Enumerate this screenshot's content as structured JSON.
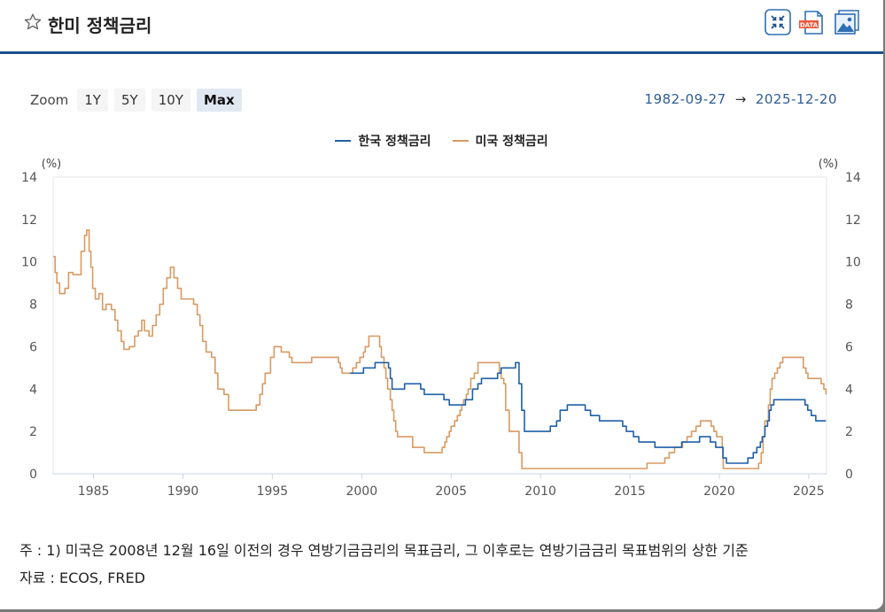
{
  "header": {
    "title": "한미 정책금리",
    "colors": {
      "accent": "#1d4f8c",
      "icon": "#2e6eb5",
      "data_badge": "#e8573c"
    }
  },
  "zoom": {
    "label": "Zoom",
    "buttons": [
      "1Y",
      "5Y",
      "10Y",
      "Max"
    ],
    "active": "Max"
  },
  "range": {
    "from": "1982-09-27",
    "arrow": "→",
    "to": "2025-12-20"
  },
  "notes": {
    "note1": "주 : 1) 미국은 2008년 12월 16일 이전의 경우 연방기금금리의 목표금리, 그 이후로는 연방기금금리 목표범위의 상한 기준",
    "source": "자료 : ECOS, FRED"
  },
  "chart_data": {
    "type": "line",
    "unit_left": "(%)",
    "unit_right": "(%)",
    "xlim": [
      1982.74,
      2026.0
    ],
    "ylim": [
      0,
      14
    ],
    "y_ticks": [
      0,
      2,
      4,
      6,
      8,
      10,
      12,
      14
    ],
    "x_ticks": [
      1985,
      1990,
      1995,
      2000,
      2005,
      2010,
      2015,
      2020,
      2025
    ],
    "legend_position": "top-center",
    "series": [
      {
        "name": "한국 정책금리",
        "color": "#1f5fa8",
        "points": [
          [
            1999.35,
            4.75
          ],
          [
            1999.85,
            4.75
          ],
          [
            2000.1,
            5.0
          ],
          [
            2000.75,
            5.25
          ],
          [
            2001.5,
            5.0
          ],
          [
            2001.6,
            4.5
          ],
          [
            2001.7,
            4.0
          ],
          [
            2002.4,
            4.25
          ],
          [
            2003.3,
            4.0
          ],
          [
            2003.5,
            3.75
          ],
          [
            2004.6,
            3.5
          ],
          [
            2004.9,
            3.25
          ],
          [
            2005.8,
            3.5
          ],
          [
            2006.2,
            4.0
          ],
          [
            2006.5,
            4.25
          ],
          [
            2006.7,
            4.5
          ],
          [
            2007.6,
            4.75
          ],
          [
            2007.8,
            5.0
          ],
          [
            2008.6,
            5.25
          ],
          [
            2008.8,
            4.25
          ],
          [
            2008.95,
            3.0
          ],
          [
            2009.1,
            2.0
          ],
          [
            2010.55,
            2.25
          ],
          [
            2010.9,
            2.5
          ],
          [
            2011.1,
            3.0
          ],
          [
            2011.5,
            3.25
          ],
          [
            2012.5,
            3.0
          ],
          [
            2012.8,
            2.75
          ],
          [
            2013.3,
            2.5
          ],
          [
            2014.6,
            2.25
          ],
          [
            2014.8,
            2.0
          ],
          [
            2015.2,
            1.75
          ],
          [
            2015.5,
            1.5
          ],
          [
            2016.4,
            1.25
          ],
          [
            2017.9,
            1.5
          ],
          [
            2018.9,
            1.75
          ],
          [
            2019.5,
            1.5
          ],
          [
            2019.8,
            1.25
          ],
          [
            2020.2,
            0.75
          ],
          [
            2020.4,
            0.5
          ],
          [
            2021.6,
            0.75
          ],
          [
            2021.9,
            1.0
          ],
          [
            2022.1,
            1.25
          ],
          [
            2022.3,
            1.5
          ],
          [
            2022.4,
            1.75
          ],
          [
            2022.55,
            2.25
          ],
          [
            2022.7,
            2.5
          ],
          [
            2022.8,
            3.0
          ],
          [
            2022.9,
            3.25
          ],
          [
            2023.05,
            3.5
          ],
          [
            2024.8,
            3.25
          ],
          [
            2024.95,
            3.0
          ],
          [
            2025.15,
            2.75
          ],
          [
            2025.4,
            2.5
          ],
          [
            2025.97,
            2.5
          ]
        ]
      },
      {
        "name": "미국 정책금리",
        "color": "#d89a62",
        "points": [
          [
            1982.74,
            10.25
          ],
          [
            1982.85,
            9.5
          ],
          [
            1982.95,
            9.0
          ],
          [
            1983.1,
            8.5
          ],
          [
            1983.4,
            8.75
          ],
          [
            1983.6,
            9.5
          ],
          [
            1983.85,
            9.4
          ],
          [
            1984.2,
            9.4
          ],
          [
            1984.3,
            10.5
          ],
          [
            1984.5,
            11.25
          ],
          [
            1984.62,
            11.5
          ],
          [
            1984.75,
            10.5
          ],
          [
            1984.85,
            9.75
          ],
          [
            1984.95,
            8.75
          ],
          [
            1985.1,
            8.25
          ],
          [
            1985.3,
            8.5
          ],
          [
            1985.5,
            7.75
          ],
          [
            1985.7,
            8.0
          ],
          [
            1986.0,
            7.75
          ],
          [
            1986.2,
            7.25
          ],
          [
            1986.35,
            6.75
          ],
          [
            1986.55,
            6.25
          ],
          [
            1986.7,
            5.875
          ],
          [
            1987.0,
            6.0
          ],
          [
            1987.3,
            6.5
          ],
          [
            1987.5,
            6.75
          ],
          [
            1987.7,
            7.25
          ],
          [
            1987.85,
            6.75
          ],
          [
            1988.1,
            6.5
          ],
          [
            1988.3,
            7.0
          ],
          [
            1988.5,
            7.5
          ],
          [
            1988.7,
            8.0
          ],
          [
            1988.9,
            8.75
          ],
          [
            1989.1,
            9.25
          ],
          [
            1989.3,
            9.75
          ],
          [
            1989.5,
            9.25
          ],
          [
            1989.7,
            8.75
          ],
          [
            1989.9,
            8.25
          ],
          [
            1990.6,
            8.0
          ],
          [
            1990.8,
            7.5
          ],
          [
            1990.95,
            7.0
          ],
          [
            1991.1,
            6.25
          ],
          [
            1991.3,
            5.75
          ],
          [
            1991.6,
            5.5
          ],
          [
            1991.8,
            4.75
          ],
          [
            1991.95,
            4.0
          ],
          [
            1992.3,
            3.75
          ],
          [
            1992.55,
            3.0
          ],
          [
            1994.1,
            3.25
          ],
          [
            1994.3,
            3.75
          ],
          [
            1994.45,
            4.25
          ],
          [
            1994.6,
            4.75
          ],
          [
            1994.9,
            5.5
          ],
          [
            1995.1,
            6.0
          ],
          [
            1995.5,
            5.75
          ],
          [
            1995.95,
            5.5
          ],
          [
            1996.1,
            5.25
          ],
          [
            1997.2,
            5.5
          ],
          [
            1998.7,
            5.25
          ],
          [
            1998.8,
            5.0
          ],
          [
            1998.9,
            4.75
          ],
          [
            1999.5,
            5.0
          ],
          [
            1999.7,
            5.25
          ],
          [
            1999.9,
            5.5
          ],
          [
            2000.1,
            5.75
          ],
          [
            2000.2,
            6.0
          ],
          [
            2000.4,
            6.5
          ],
          [
            2001.0,
            6.0
          ],
          [
            2001.1,
            5.5
          ],
          [
            2001.25,
            5.0
          ],
          [
            2001.35,
            4.5
          ],
          [
            2001.45,
            4.0
          ],
          [
            2001.6,
            3.5
          ],
          [
            2001.7,
            3.0
          ],
          [
            2001.8,
            2.5
          ],
          [
            2001.9,
            2.0
          ],
          [
            2002.0,
            1.75
          ],
          [
            2002.85,
            1.25
          ],
          [
            2003.5,
            1.0
          ],
          [
            2004.5,
            1.25
          ],
          [
            2004.65,
            1.5
          ],
          [
            2004.75,
            1.75
          ],
          [
            2004.9,
            2.0
          ],
          [
            2005.0,
            2.25
          ],
          [
            2005.2,
            2.5
          ],
          [
            2005.35,
            2.75
          ],
          [
            2005.5,
            3.0
          ],
          [
            2005.6,
            3.25
          ],
          [
            2005.7,
            3.5
          ],
          [
            2005.85,
            3.75
          ],
          [
            2005.95,
            4.0
          ],
          [
            2006.1,
            4.5
          ],
          [
            2006.3,
            4.75
          ],
          [
            2006.5,
            5.25
          ],
          [
            2007.7,
            4.75
          ],
          [
            2007.8,
            4.5
          ],
          [
            2007.95,
            4.25
          ],
          [
            2008.05,
            3.0
          ],
          [
            2008.25,
            2.0
          ],
          [
            2008.8,
            1.0
          ],
          [
            2008.96,
            0.25
          ],
          [
            2015.96,
            0.5
          ],
          [
            2016.95,
            0.75
          ],
          [
            2017.2,
            1.0
          ],
          [
            2017.5,
            1.25
          ],
          [
            2017.95,
            1.5
          ],
          [
            2018.2,
            1.75
          ],
          [
            2018.45,
            2.0
          ],
          [
            2018.7,
            2.25
          ],
          [
            2018.95,
            2.5
          ],
          [
            2019.55,
            2.25
          ],
          [
            2019.7,
            2.0
          ],
          [
            2019.85,
            1.75
          ],
          [
            2020.17,
            1.25
          ],
          [
            2020.22,
            0.25
          ],
          [
            2022.2,
            0.5
          ],
          [
            2022.35,
            1.0
          ],
          [
            2022.45,
            1.75
          ],
          [
            2022.55,
            2.5
          ],
          [
            2022.75,
            3.25
          ],
          [
            2022.85,
            4.0
          ],
          [
            2022.95,
            4.5
          ],
          [
            2023.1,
            4.75
          ],
          [
            2023.25,
            5.0
          ],
          [
            2023.4,
            5.25
          ],
          [
            2023.55,
            5.5
          ],
          [
            2024.7,
            5.0
          ],
          [
            2024.85,
            4.75
          ],
          [
            2024.96,
            4.5
          ],
          [
            2025.7,
            4.25
          ],
          [
            2025.85,
            4.0
          ],
          [
            2025.97,
            3.75
          ]
        ]
      }
    ]
  }
}
